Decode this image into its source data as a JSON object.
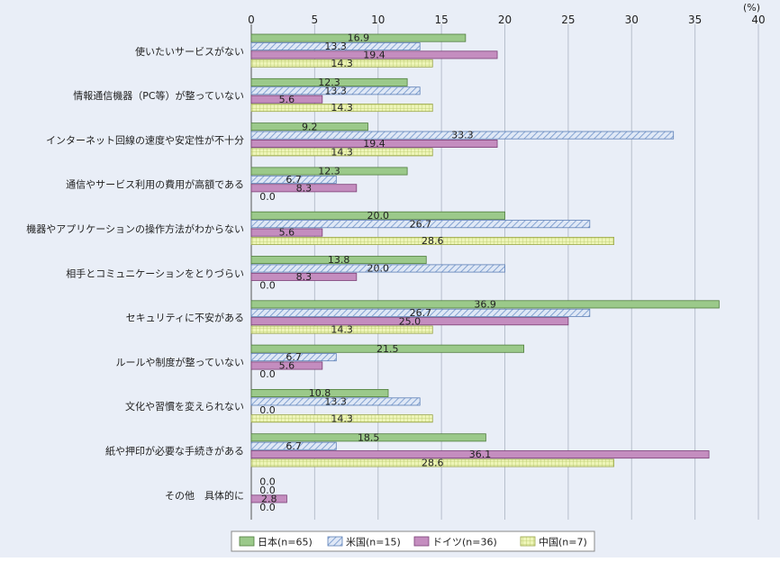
{
  "chart_data": {
    "type": "bar",
    "orientation": "horizontal",
    "unit": "(%)",
    "xlim": [
      0,
      40
    ],
    "ticks": [
      0,
      5,
      10,
      15,
      20,
      25,
      30,
      35,
      40
    ],
    "grid": true,
    "legend_position": "bottom",
    "categories": [
      "使いたいサービスがない",
      "情報通信機器（PC等）が整っていない",
      "インターネット回線の速度や安定性が不十分",
      "通信やサービス利用の費用が高額である",
      "機器やアプリケーションの操作方法がわからない",
      "相手とコミュニケーションをとりづらい",
      "セキュリティに不安がある",
      "ルールや制度が整っていない",
      "文化や習慣を変えられない",
      "紙や押印が必要な手続きがある",
      "その他　具体的に"
    ],
    "series": [
      {
        "name": "日本(n=65)",
        "color": "#9bc98a",
        "pattern": "solid",
        "values": [
          16.9,
          12.3,
          9.2,
          12.3,
          20.0,
          13.8,
          36.9,
          21.5,
          10.8,
          18.5,
          0.0
        ]
      },
      {
        "name": "米国(n=15)",
        "color": "#c5d6ee",
        "pattern": "diagonal",
        "values": [
          13.3,
          13.3,
          33.3,
          6.7,
          26.7,
          20.0,
          26.7,
          6.7,
          13.3,
          6.7,
          0.0
        ]
      },
      {
        "name": "ドイツ(n=36)",
        "color": "#c48dbf",
        "pattern": "solid",
        "values": [
          19.4,
          5.6,
          19.4,
          8.3,
          5.6,
          8.3,
          25.0,
          5.6,
          0.0,
          36.1,
          2.8
        ]
      },
      {
        "name": "中国(n=7)",
        "color": "#e7f0a8",
        "pattern": "grid",
        "values": [
          14.3,
          14.3,
          14.3,
          0.0,
          28.6,
          0.0,
          14.3,
          0.0,
          14.3,
          28.6,
          0.0
        ]
      }
    ]
  }
}
